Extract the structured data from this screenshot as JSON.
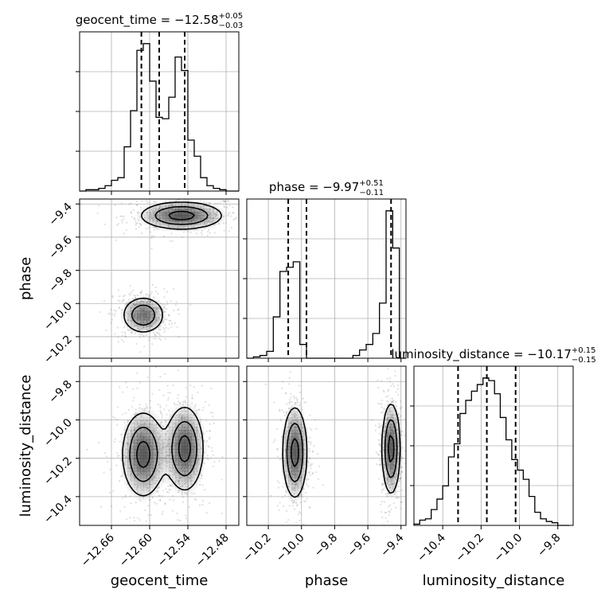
{
  "colors": {
    "line": "#000000",
    "grid": "#b0b0b0",
    "scatter": "#808080",
    "contour_fill": "#404040"
  },
  "chart_data": {
    "type": "corner",
    "parameters": [
      "geocent_time",
      "phase",
      "luminosity_distance"
    ],
    "axes": {
      "geocent_time": {
        "range": [
          -12.71,
          -12.46
        ],
        "ticks": [
          -12.66,
          -12.6,
          -12.54,
          -12.48
        ],
        "tick_labels": [
          "−12.66",
          "−12.60",
          "−12.54",
          "−12.48"
        ],
        "label": "geocent_time"
      },
      "phase": {
        "range": [
          -10.33,
          -9.37
        ],
        "ticks": [
          -10.2,
          -10.0,
          -9.8,
          -9.6,
          -9.4
        ],
        "tick_labels": [
          "−10.2",
          "−10.0",
          "−9.8",
          "−9.6",
          "−9.4"
        ],
        "label": "phase"
      },
      "luminosity_distance": {
        "range": [
          -10.55,
          -9.72
        ],
        "ticks": [
          -10.4,
          -10.2,
          -10.0,
          -9.8
        ],
        "tick_labels": [
          "−10.4",
          "−10.2",
          "−10.0",
          "−9.8"
        ],
        "label": "luminosity_distance"
      }
    },
    "titles": [
      {
        "param": "geocent_time",
        "prefix": "geocent_time = ",
        "median": "−12.58",
        "plus": "+0.05",
        "minus": "−0.03"
      },
      {
        "param": "phase",
        "prefix": "phase = ",
        "median": "−9.97",
        "plus": "+0.51",
        "minus": "−0.11"
      },
      {
        "param": "luminosity_distance",
        "prefix": "luminosity_distance = ",
        "median": "−10.17",
        "plus": "+0.15",
        "minus": "−0.15"
      }
    ],
    "quantiles": {
      "geocent_time": [
        -12.613,
        -12.585,
        -12.545
      ],
      "phase": [
        -10.08,
        -9.97,
        -9.46
      ],
      "luminosity_distance": [
        -10.32,
        -10.17,
        -10.02
      ]
    },
    "histograms": {
      "geocent_time": {
        "edges": [
          -12.71,
          -12.7,
          -12.69,
          -12.68,
          -12.67,
          -12.66,
          -12.65,
          -12.64,
          -12.63,
          -12.62,
          -12.61,
          -12.6,
          -12.59,
          -12.58,
          -12.57,
          -12.56,
          -12.55,
          -12.54,
          -12.53,
          -12.52,
          -12.51,
          -12.5,
          -12.49,
          -12.48,
          -12.47,
          -12.46
        ],
        "counts": [
          0,
          1,
          1,
          2,
          4,
          8,
          10,
          33,
          60,
          105,
          110,
          82,
          55,
          54,
          70,
          100,
          90,
          38,
          26,
          10,
          4,
          2,
          1,
          0,
          0
        ]
      },
      "phase": {
        "edges": [
          -10.33,
          -10.29,
          -10.25,
          -10.21,
          -10.17,
          -10.13,
          -10.09,
          -10.05,
          -10.01,
          -9.97,
          -9.93,
          -9.89,
          -9.85,
          -9.81,
          -9.77,
          -9.73,
          -9.69,
          -9.65,
          -9.61,
          -9.57,
          -9.53,
          -9.49,
          -9.45,
          -9.41,
          -9.37
        ],
        "counts": [
          0,
          1,
          2,
          5,
          30,
          63,
          66,
          70,
          10,
          0,
          0,
          0,
          0,
          0,
          0,
          0,
          2,
          6,
          10,
          18,
          40,
          107,
          80,
          0
        ]
      },
      "luminosity_distance": {
        "edges": [
          -10.55,
          -10.52,
          -10.49,
          -10.46,
          -10.43,
          -10.4,
          -10.37,
          -10.34,
          -10.31,
          -10.28,
          -10.25,
          -10.22,
          -10.19,
          -10.16,
          -10.13,
          -10.1,
          -10.07,
          -10.04,
          -10.01,
          -9.98,
          -9.95,
          -9.92,
          -9.89,
          -9.86,
          -9.83,
          -9.8,
          -9.77,
          -9.74
        ],
        "counts": [
          1,
          4,
          5,
          12,
          20,
          30,
          52,
          62,
          85,
          95,
          102,
          107,
          112,
          110,
          100,
          82,
          65,
          50,
          42,
          35,
          22,
          10,
          5,
          3,
          2,
          0,
          0
        ]
      }
    },
    "blobs": {
      "phase__geocent_time": [
        {
          "cx": -12.55,
          "cy": -9.47,
          "sx": 0.035,
          "sy": 0.045,
          "w": 0.55
        },
        {
          "cx": -12.61,
          "cy": -10.07,
          "sx": 0.018,
          "sy": 0.06,
          "w": 0.45
        }
      ],
      "luminosity_distance__geocent_time": [
        {
          "cx": -12.61,
          "cy": -10.18,
          "sx": 0.018,
          "sy": 0.12,
          "w": 0.5
        },
        {
          "cx": -12.545,
          "cy": -10.15,
          "sx": 0.016,
          "sy": 0.12,
          "w": 0.5
        }
      ],
      "luminosity_distance__phase": [
        {
          "cx": -10.04,
          "cy": -10.17,
          "sx": 0.04,
          "sy": 0.13,
          "w": 0.5
        },
        {
          "cx": -9.46,
          "cy": -10.15,
          "sx": 0.03,
          "sy": 0.13,
          "w": 0.5
        }
      ]
    },
    "contour_levels": [
      0.85,
      0.5,
      0.2
    ],
    "grid": true
  }
}
